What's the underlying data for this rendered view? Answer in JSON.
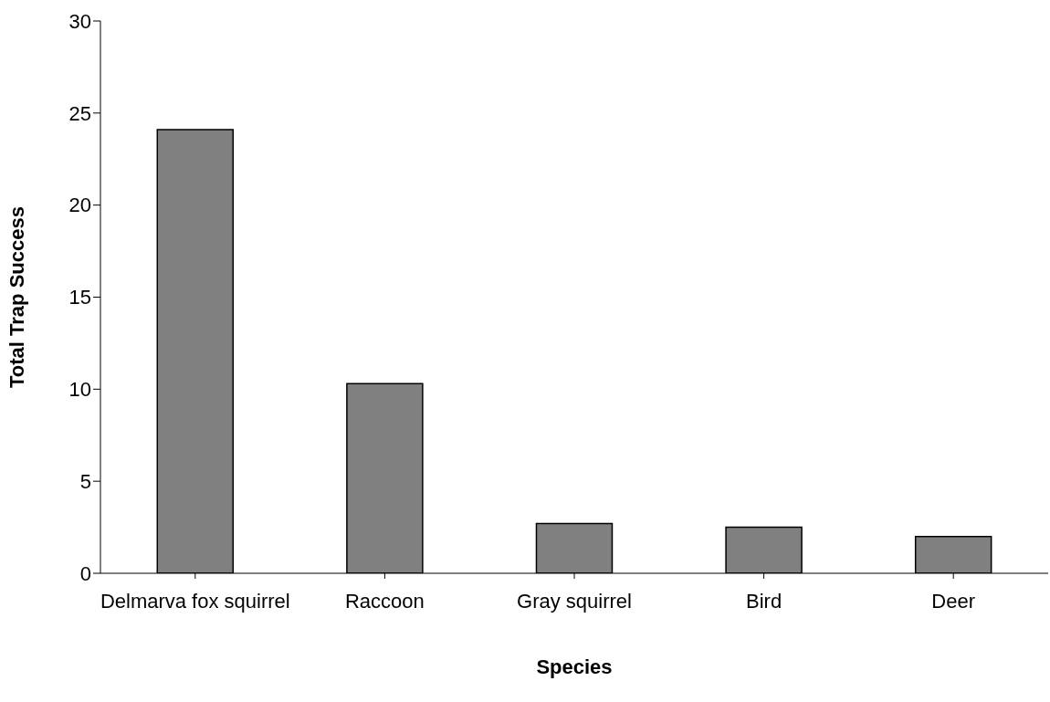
{
  "chart_data": {
    "type": "bar",
    "xlabel": "Species",
    "ylabel": "Total Trap Success",
    "categories": [
      "Delmarva fox squirrel",
      "Raccoon",
      "Gray squirrel",
      "Bird",
      "Deer"
    ],
    "values": [
      24.1,
      10.3,
      2.7,
      2.5,
      2.0
    ],
    "color": "#808080",
    "ylim": [
      0,
      30
    ],
    "yticks": [
      0,
      5,
      10,
      15,
      20,
      25,
      30
    ],
    "grid": false,
    "legend": false
  }
}
